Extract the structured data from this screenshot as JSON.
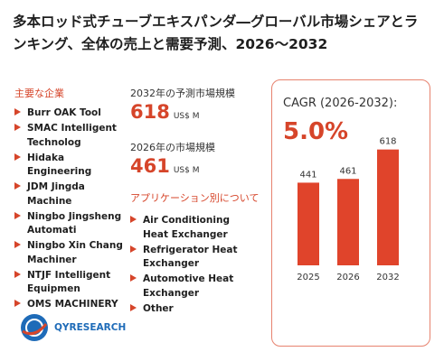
{
  "title": "多本ロッド式チューブエキスパンダ―グローバル市場シェアとランキング、全体の売上と需要予測、2026～2032",
  "companies": {
    "heading": "主要な企業",
    "items": [
      "Burr OAK Tool",
      "SMAC Intelligent Technolog",
      "Hidaka Engineering",
      "JDM Jingda Machine",
      "Ningbo Jingsheng Automati",
      "Ningbo Xin Chang Machiner",
      "NTJF Intelligent Equipmen",
      "OMS MACHINERY"
    ]
  },
  "forecast": {
    "heading": "2032年の予測市場規模",
    "value": "618",
    "unit": "US$ M"
  },
  "market": {
    "heading": "2026年の市場規模",
    "value": "461",
    "unit": "US$ M"
  },
  "applications": {
    "heading": "アプリケーション別について",
    "items": [
      "Air Conditioning Heat Exchanger",
      "Refrigerator Heat Exchanger",
      "Automotive Heat Exchanger",
      "Other"
    ]
  },
  "cagr": {
    "label": "CAGR (2026-2032):",
    "value": "5.0%"
  },
  "logo": {
    "text_main": "QYRESEARCH",
    "text_q": "Q"
  },
  "colors": {
    "accent": "#d6452a",
    "bar": "#e0442b",
    "border": "#e7826e"
  },
  "chart_data": {
    "type": "bar",
    "categories": [
      "2025",
      "2026",
      "2032"
    ],
    "values": [
      441,
      461,
      618
    ],
    "ylim": [
      0,
      650
    ],
    "title": "",
    "xlabel": "",
    "ylabel": ""
  }
}
